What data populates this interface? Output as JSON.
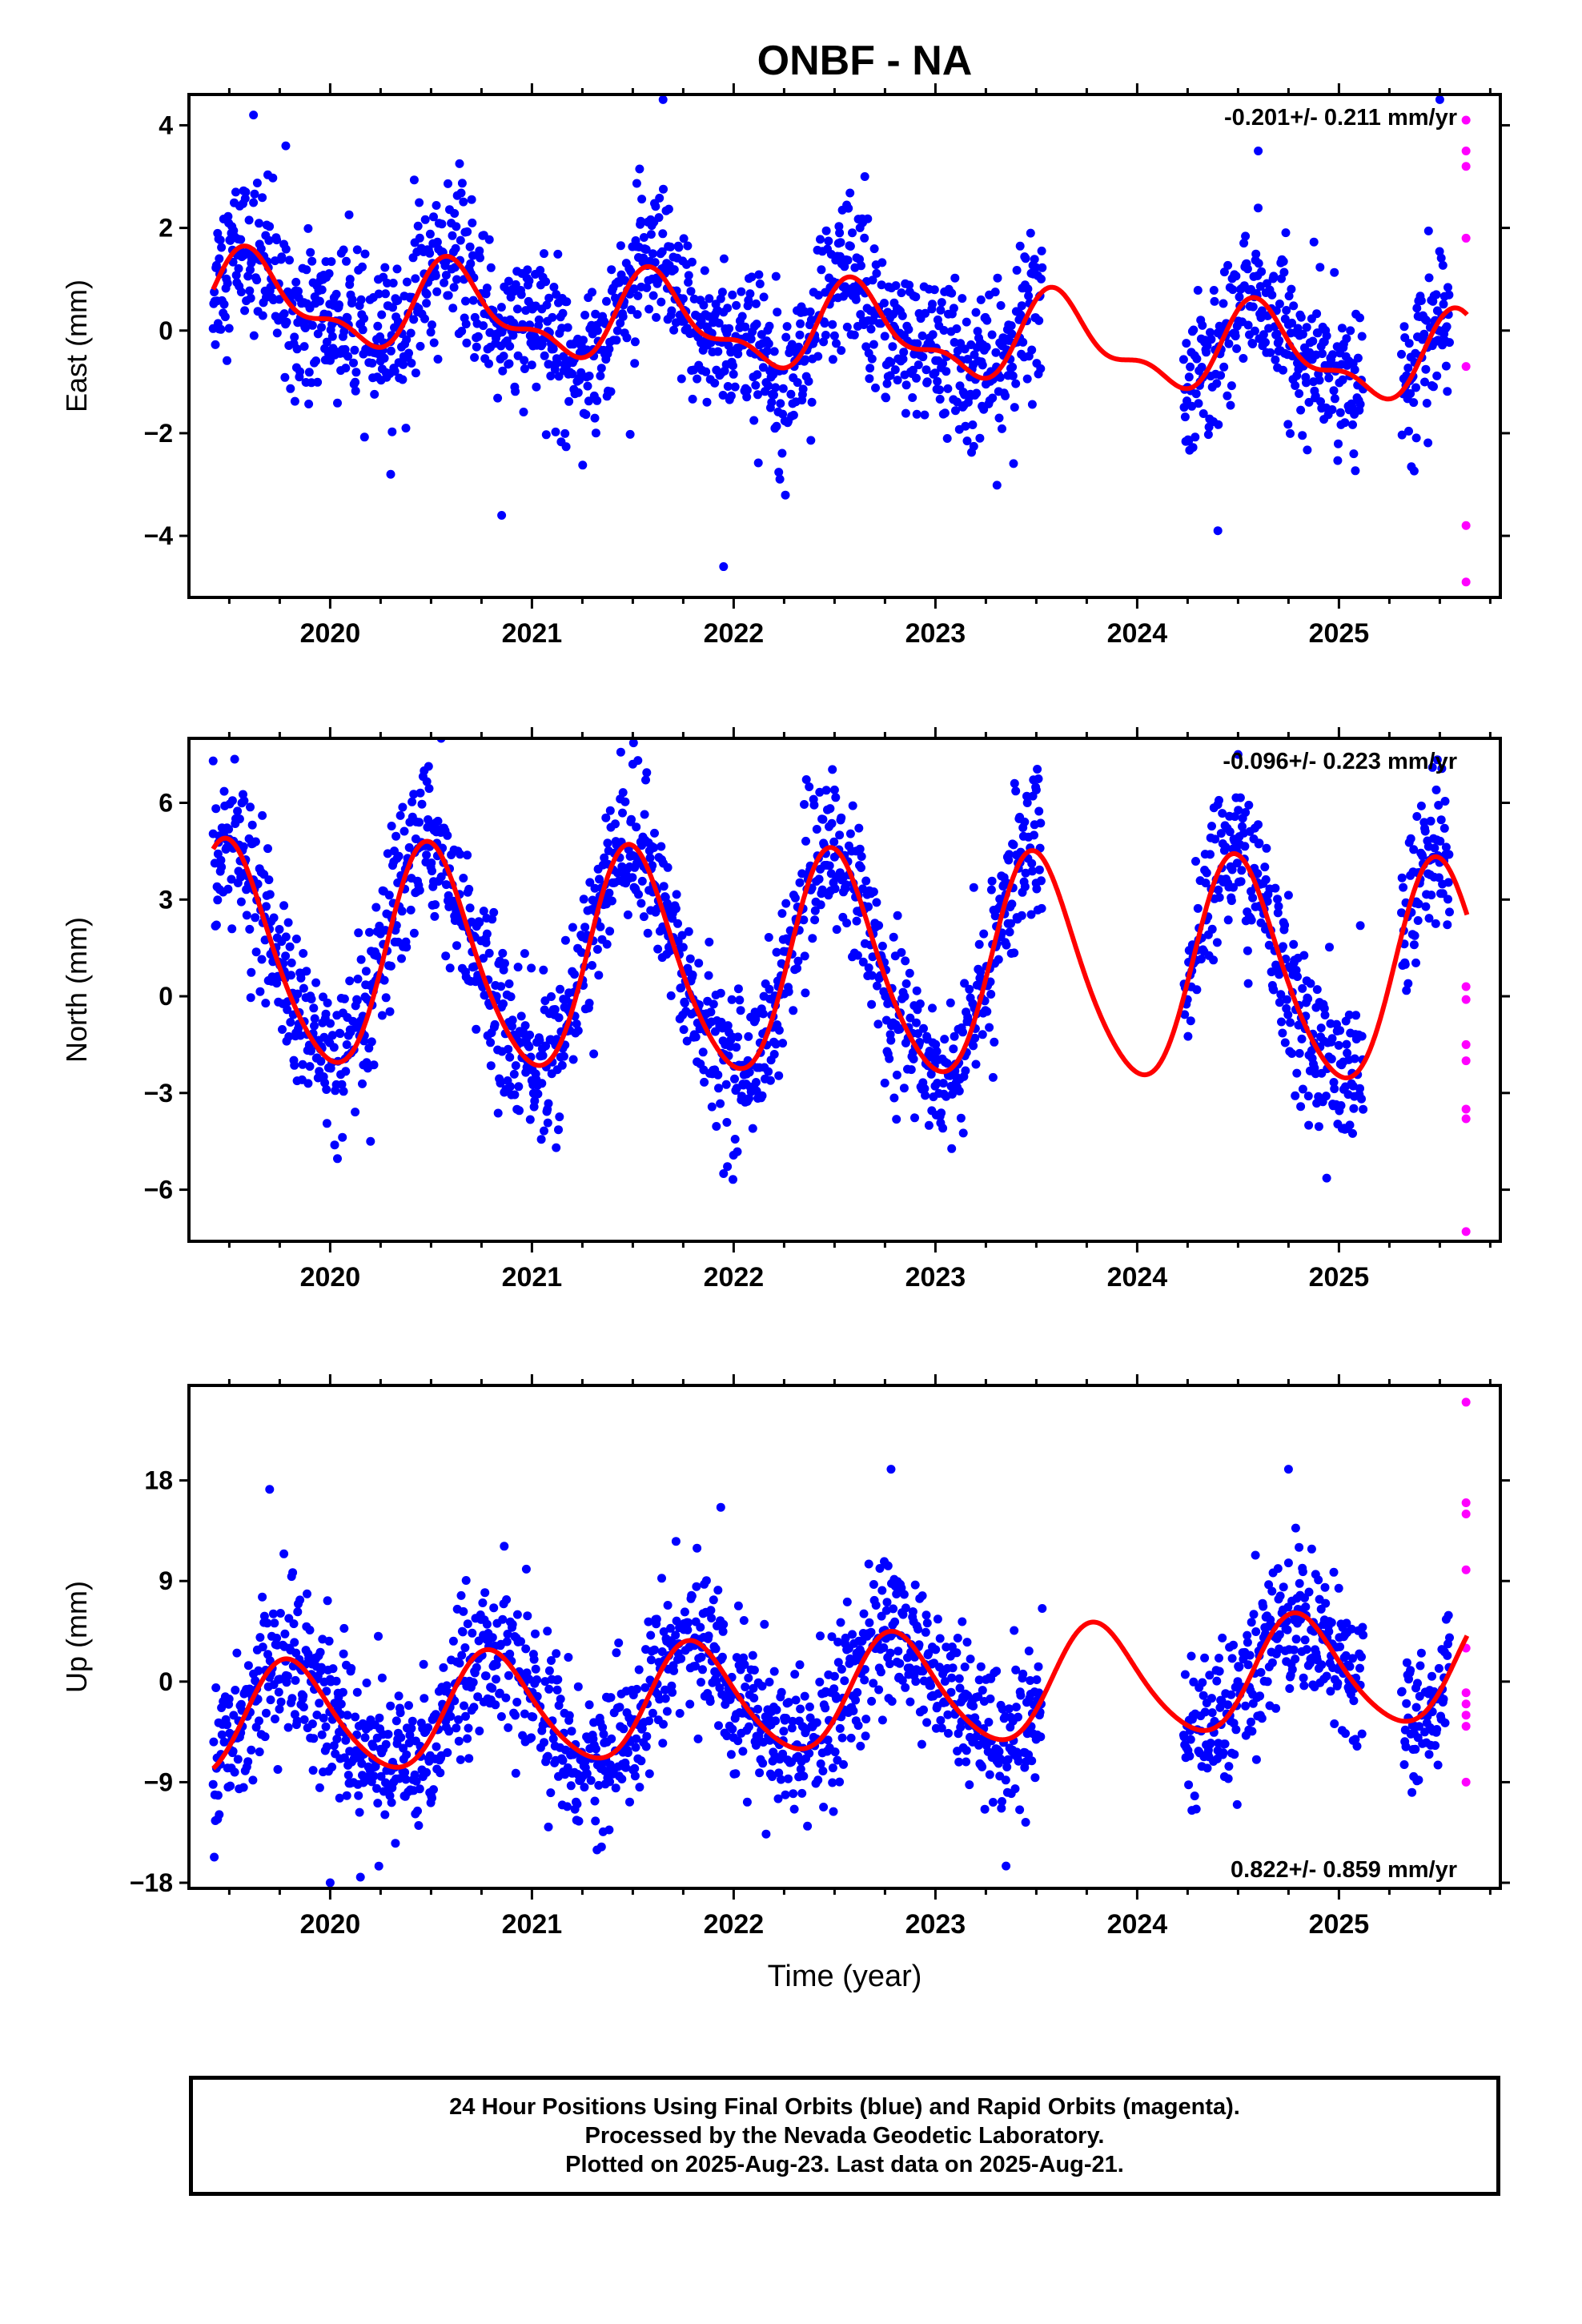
{
  "title": "ONBF - NA",
  "footer": {
    "line1": "24 Hour Positions Using Final Orbits (blue) and Rapid Orbits (magenta).",
    "line2": "Processed by the Nevada Geodetic Laboratory.",
    "line3": "Plotted on 2025-Aug-23. Last data on 2025-Aug-21."
  },
  "colors": {
    "final": "#0000ff",
    "rapid": "#ff00ff",
    "model": "#ff0000"
  },
  "chart_data": [
    {
      "type": "scatter",
      "component": "East",
      "ylabel": "East (mm)",
      "xlabel": "",
      "rate_label": "-0.201+/- 0.211 mm/yr",
      "xlim": [
        2019.3,
        2025.8
      ],
      "ylim": [
        -5.2,
        4.6
      ],
      "yticks": [
        -4,
        -2,
        0,
        2,
        4
      ],
      "yticklabels": [
        "−4",
        "−2",
        "0",
        "2",
        "4"
      ],
      "xticks": [
        2020,
        2021,
        2022,
        2023,
        2024,
        2025
      ],
      "xticklabels": [
        "2020",
        "2021",
        "2022",
        "2023",
        "2024",
        "2025"
      ],
      "data_segments": [
        [
          2019.42,
          2023.53
        ],
        [
          2024.23,
          2025.12
        ],
        [
          2025.31,
          2025.55
        ]
      ],
      "final_points_sample": [
        {
          "x": 2019.45,
          "y": 1.4
        },
        {
          "x": 2019.62,
          "y": 4.2
        },
        {
          "x": 2019.78,
          "y": 3.6
        },
        {
          "x": 2020.3,
          "y": -2.8
        },
        {
          "x": 2020.85,
          "y": -3.6
        },
        {
          "x": 2021.65,
          "y": 4.5
        },
        {
          "x": 2021.95,
          "y": -4.6
        },
        {
          "x": 2022.65,
          "y": 3.0
        },
        {
          "x": 2024.4,
          "y": -3.9
        },
        {
          "x": 2024.6,
          "y": 3.5
        },
        {
          "x": 2025.5,
          "y": 4.5
        }
      ],
      "rapid_points": [
        {
          "x": 2025.63,
          "y": 4.1
        },
        {
          "x": 2025.63,
          "y": 3.5
        },
        {
          "x": 2025.63,
          "y": 3.2
        },
        {
          "x": 2025.63,
          "y": 1.8
        },
        {
          "x": 2025.63,
          "y": -0.7
        },
        {
          "x": 2025.63,
          "y": -3.8
        },
        {
          "x": 2025.63,
          "y": -4.9
        }
      ],
      "model": {
        "rate": -0.201,
        "offset": 0.0,
        "annual_amp": 0.75,
        "annual_phase_peak": 0.62,
        "semiannual_amp": 0.35
      }
    },
    {
      "type": "scatter",
      "component": "North",
      "ylabel": "North (mm)",
      "xlabel": "",
      "rate_label": "-0.096+/- 0.223 mm/yr",
      "xlim": [
        2019.3,
        2025.8
      ],
      "ylim": [
        -7.6,
        8.0
      ],
      "yticks": [
        -6,
        -3,
        0,
        3,
        6
      ],
      "yticklabels": [
        "−6",
        "−3",
        "0",
        "3",
        "6"
      ],
      "xticks": [
        2020,
        2021,
        2022,
        2023,
        2024,
        2025
      ],
      "xticklabels": [
        "2020",
        "2021",
        "2022",
        "2023",
        "2024",
        "2025"
      ],
      "data_segments": [
        [
          2019.42,
          2023.53
        ],
        [
          2024.23,
          2025.12
        ],
        [
          2025.31,
          2025.55
        ]
      ],
      "final_points_sample": [
        {
          "x": 2019.42,
          "y": 7.3
        },
        {
          "x": 2020.55,
          "y": 8.0
        },
        {
          "x": 2020.2,
          "y": -4.5
        },
        {
          "x": 2021.5,
          "y": 7.2
        },
        {
          "x": 2021.95,
          "y": -5.5
        },
        {
          "x": 2022.5,
          "y": 6.4
        },
        {
          "x": 2023.5,
          "y": 6.4
        },
        {
          "x": 2024.5,
          "y": 7.5
        },
        {
          "x": 2024.85,
          "y": -4.0
        }
      ],
      "rapid_points": [
        {
          "x": 2025.63,
          "y": 0.3
        },
        {
          "x": 2025.63,
          "y": -0.1
        },
        {
          "x": 2025.63,
          "y": -1.5
        },
        {
          "x": 2025.63,
          "y": -2.0
        },
        {
          "x": 2025.63,
          "y": -3.5
        },
        {
          "x": 2025.63,
          "y": -3.8
        },
        {
          "x": 2025.63,
          "y": -7.3
        }
      ],
      "model": {
        "rate": -0.096,
        "offset": 0.9,
        "annual_amp": 3.4,
        "annual_phase_peak": 0.5,
        "semiannual_amp": 0.4
      }
    },
    {
      "type": "scatter",
      "component": "Up",
      "ylabel": "Up (mm)",
      "xlabel": "Time (year)",
      "rate_label": "0.822+/- 0.859 mm/yr",
      "xlim": [
        2019.3,
        2025.8
      ],
      "ylim": [
        -18.5,
        26.5
      ],
      "yticks": [
        -18,
        -9,
        0,
        9,
        18
      ],
      "yticklabels": [
        "−18",
        "−9",
        "0",
        "9",
        "18"
      ],
      "xticks": [
        2020,
        2021,
        2022,
        2023,
        2024,
        2025
      ],
      "xticklabels": [
        "2020",
        "2021",
        "2022",
        "2023",
        "2024",
        "2025"
      ],
      "data_segments": [
        [
          2019.42,
          2023.53
        ],
        [
          2024.23,
          2025.12
        ],
        [
          2025.31,
          2025.55
        ]
      ],
      "final_points_sample": [
        {
          "x": 2019.7,
          "y": 17.2
        },
        {
          "x": 2020.0,
          "y": -18.0
        },
        {
          "x": 2020.15,
          "y": -17.5
        },
        {
          "x": 2022.78,
          "y": 19.0
        },
        {
          "x": 2023.35,
          "y": -16.5
        },
        {
          "x": 2024.75,
          "y": 19.0
        }
      ],
      "rapid_points": [
        {
          "x": 2025.63,
          "y": 25.0
        },
        {
          "x": 2025.63,
          "y": 16.0
        },
        {
          "x": 2025.63,
          "y": 15.0
        },
        {
          "x": 2025.63,
          "y": 10.0
        },
        {
          "x": 2025.63,
          "y": 3.0
        },
        {
          "x": 2025.63,
          "y": -1.0
        },
        {
          "x": 2025.63,
          "y": -2.0
        },
        {
          "x": 2025.63,
          "y": -3.0
        },
        {
          "x": 2025.63,
          "y": -4.0
        },
        {
          "x": 2025.63,
          "y": -9.0
        }
      ],
      "model": {
        "rate": 0.822,
        "offset": -1.2,
        "annual_amp": 5.0,
        "annual_phase_peak": 0.8,
        "semiannual_amp": 0.6
      }
    }
  ]
}
